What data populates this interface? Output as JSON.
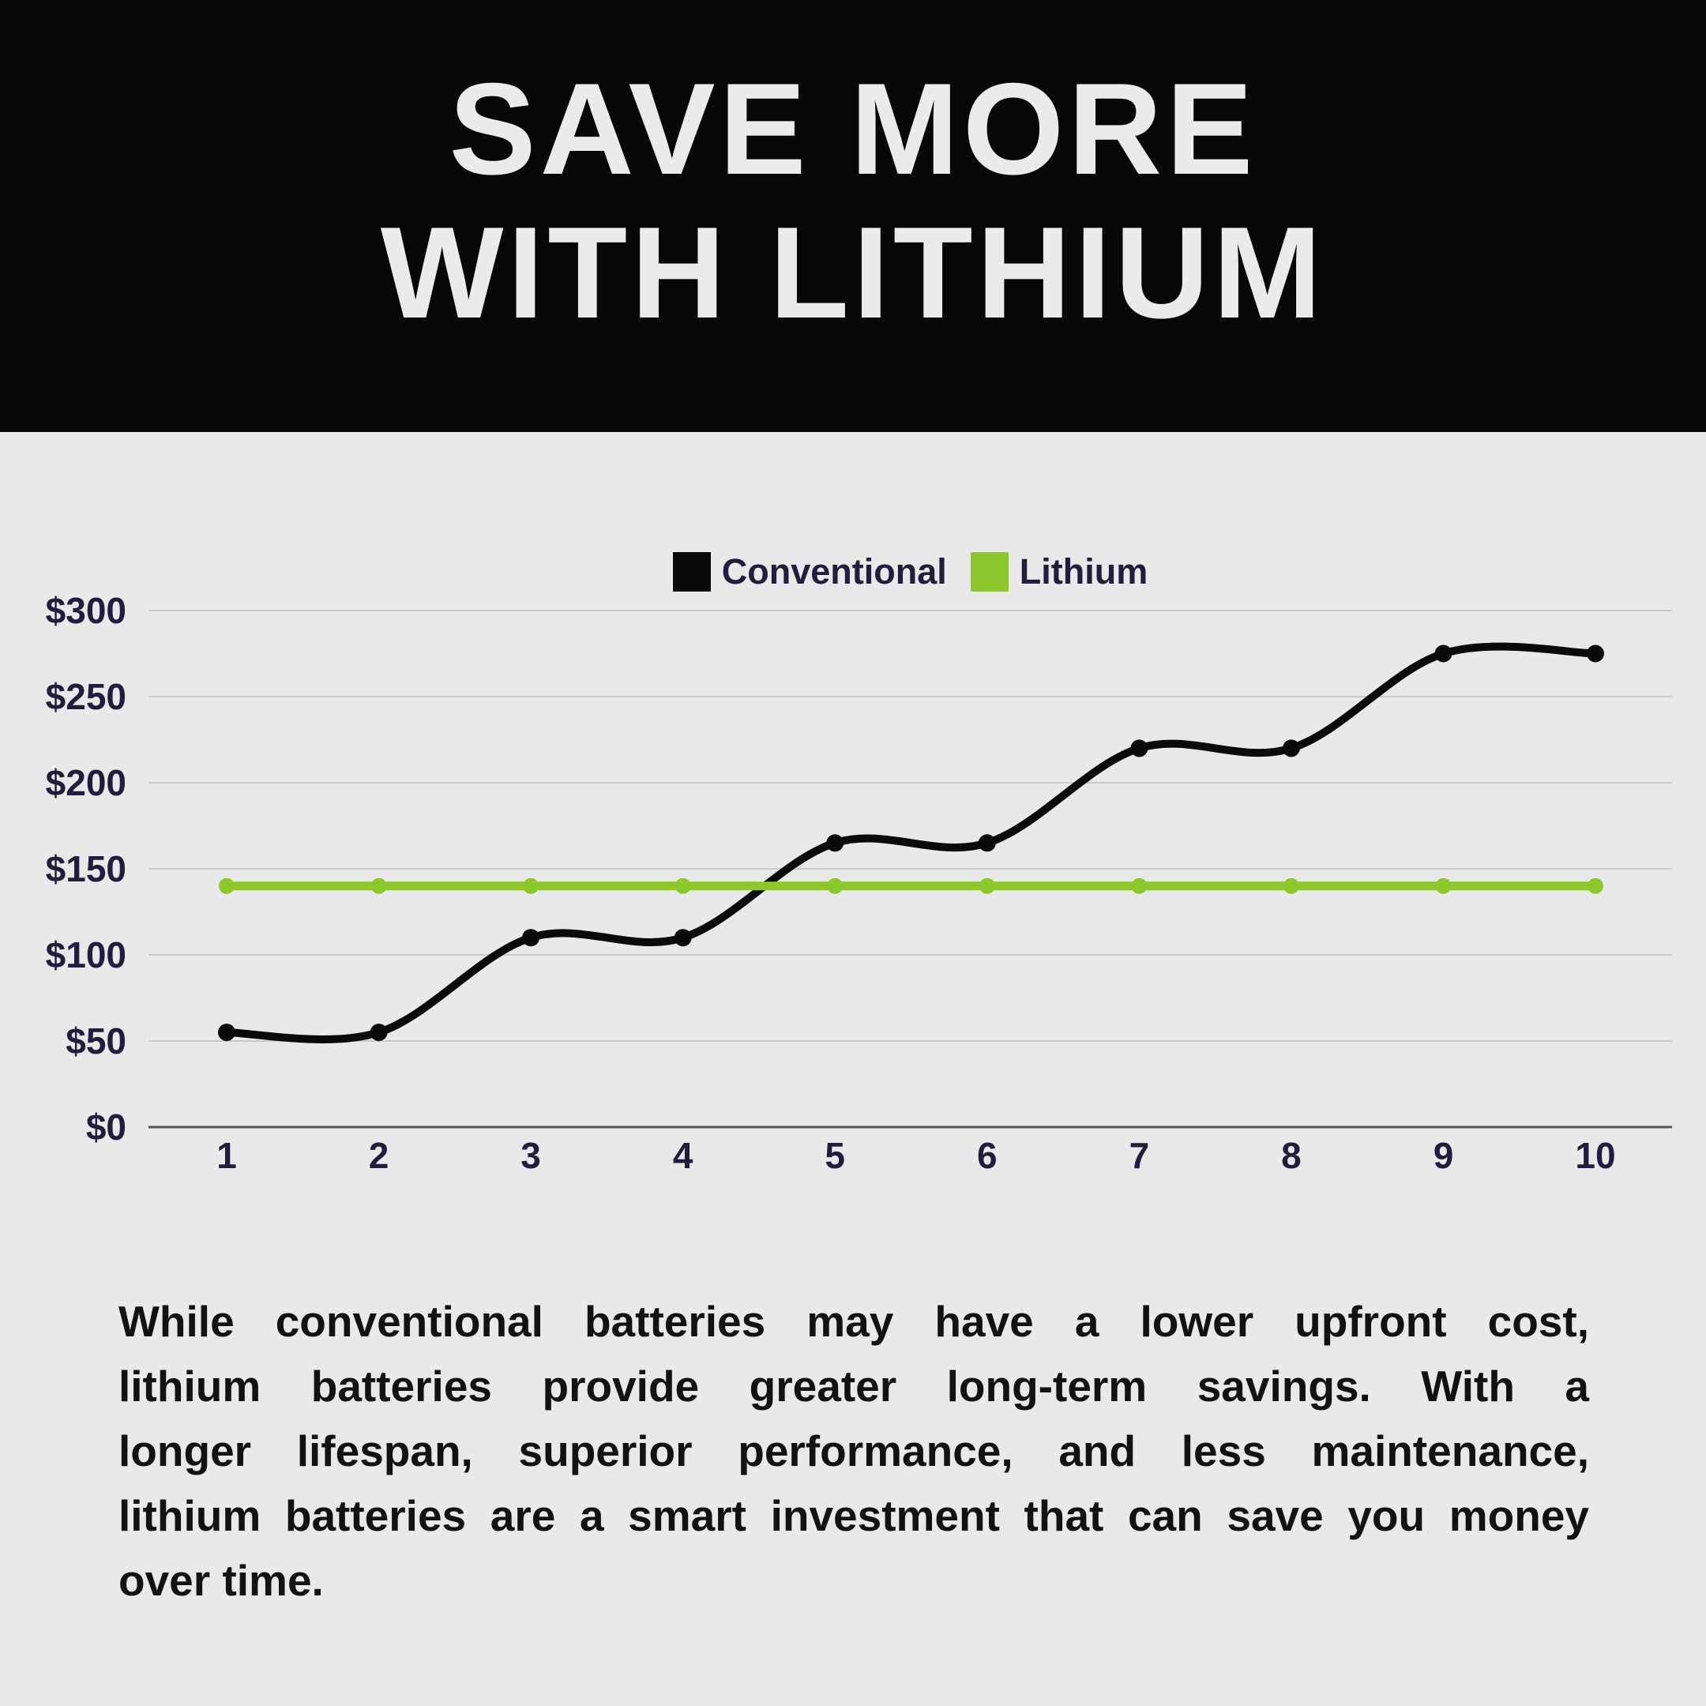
{
  "header": {
    "title_line1": "SAVE MORE",
    "title_line2": "WITH LITHIUM"
  },
  "chart_data": {
    "type": "line",
    "title": "",
    "xlabel": "",
    "ylabel": "",
    "categories": [
      "1",
      "2",
      "3",
      "4",
      "5",
      "6",
      "7",
      "8",
      "9",
      "10"
    ],
    "series": [
      {
        "name": "Conventional",
        "color": "#0a0a0a",
        "values": [
          55,
          55,
          110,
          110,
          165,
          165,
          220,
          220,
          275,
          275
        ]
      },
      {
        "name": "Lithium",
        "color": "#8cc72b",
        "values": [
          140,
          140,
          140,
          140,
          140,
          140,
          140,
          140,
          140,
          140
        ]
      }
    ],
    "y_ticks": [
      {
        "label": "$0",
        "value": 0
      },
      {
        "label": "$50",
        "value": 50
      },
      {
        "label": "$100",
        "value": 100
      },
      {
        "label": "$150",
        "value": 150
      },
      {
        "label": "$200",
        "value": 200
      },
      {
        "label": "$250",
        "value": 250
      },
      {
        "label": "$300",
        "value": 300
      }
    ],
    "ylim": [
      0,
      300
    ],
    "grid": "horizontal",
    "legend_position": "top-center",
    "curve": "smooth"
  },
  "body": {
    "lines": [
      "While conventional batteries may have a lower upfront cost,",
      "lithium batteries provide greater long-term savings. With a",
      "longer lifespan, superior performance, and less maintenance,",
      "lithium batteries are a smart investment that can save you money",
      "over time."
    ]
  },
  "theme": {
    "page_bg": "#e9e9e9",
    "header_bg": "#070707",
    "title_color": "#ebebeb",
    "label_color": "#221d3d",
    "body_color": "#121212",
    "grid_color": "#c9c9c9",
    "axis_color": "#55545f",
    "accent_green": "#8cc72b",
    "accent_black": "#0a0a0a"
  }
}
